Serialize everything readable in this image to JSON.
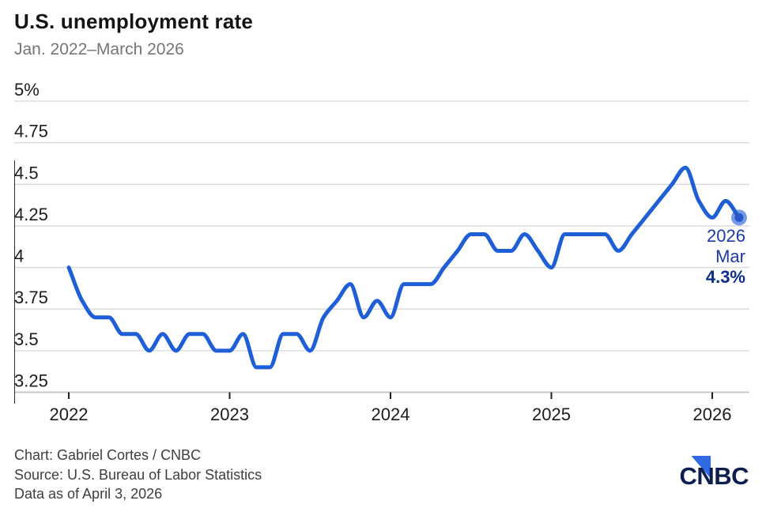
{
  "header": {
    "title": "U.S. unemployment rate",
    "subtitle": "Jan. 2022–March 2026"
  },
  "chart_data": {
    "type": "line",
    "title": "U.S. unemployment rate",
    "subtitle": "Jan. 2022–March 2026",
    "unit": "percent",
    "frequency": "monthly",
    "x_start": "2022-01",
    "x_end": "2026-03",
    "ylim": [
      3.25,
      5
    ],
    "grid": true,
    "legend": "none",
    "y_ticks": [
      5,
      4.75,
      4.5,
      4.25,
      4,
      3.75,
      3.5,
      3.25
    ],
    "y_tick_labels": [
      "5%",
      "4.75",
      "4.5",
      "4.25",
      "4",
      "3.75",
      "3.5",
      "3.25"
    ],
    "x_tick_labels": [
      "2022",
      "2023",
      "2024",
      "2025",
      "2026"
    ],
    "series": [
      {
        "name": "U.S. unemployment rate",
        "values": [
          4.0,
          3.8,
          3.7,
          3.7,
          3.6,
          3.6,
          3.5,
          3.6,
          3.5,
          3.6,
          3.6,
          3.5,
          3.5,
          3.6,
          3.4,
          3.4,
          3.6,
          3.6,
          3.5,
          3.7,
          3.8,
          3.9,
          3.7,
          3.8,
          3.7,
          3.9,
          3.9,
          3.9,
          4.0,
          4.1,
          4.2,
          4.2,
          4.1,
          4.1,
          4.2,
          4.1,
          4.0,
          4.2,
          4.2,
          4.2,
          4.2,
          4.1,
          4.2,
          4.3,
          4.4,
          4.5,
          4.6,
          4.4,
          4.3,
          4.4,
          4.3
        ]
      }
    ],
    "end_label": {
      "year": "2026",
      "month": "Mar",
      "value": "4.3%"
    }
  },
  "footer": {
    "credit": "Chart: Gabriel Cortes / CNBC",
    "source": "Source: U.S. Bureau of Labor Statistics",
    "note": "Data as of April 3, 2026"
  },
  "logo": {
    "text": "CNBC"
  },
  "colors": {
    "line": "#1e5ed6",
    "dot": "#2a56cc",
    "dot_halo": "rgba(30,94,214,0.62)",
    "annotation_text": "#1b3aa6",
    "annotation_value": "#0d2d8a",
    "logo_navy": "#0d1e4e",
    "logo_triangle": "#2d6ae3",
    "gridline": "#d8d8d8",
    "axis_line": "#c9c9c9",
    "axis_text": "#1c1c1c"
  }
}
